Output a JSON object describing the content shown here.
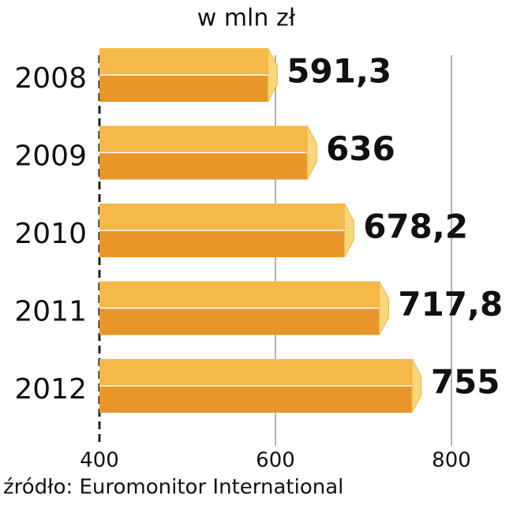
{
  "chart_data": {
    "type": "bar",
    "orientation": "horizontal",
    "title": "w mln zł",
    "categories": [
      "2008",
      "2009",
      "2010",
      "2011",
      "2012"
    ],
    "values": [
      591.3,
      636,
      678.2,
      717.8,
      755
    ],
    "value_labels": [
      "591,3",
      "636",
      "678,2",
      "717,8",
      "755"
    ],
    "color": "#f0a93a",
    "xlim": [
      400,
      800
    ],
    "xticks": [
      400,
      600,
      800
    ],
    "grid": true,
    "source": "źródło: Euromonitor International"
  }
}
